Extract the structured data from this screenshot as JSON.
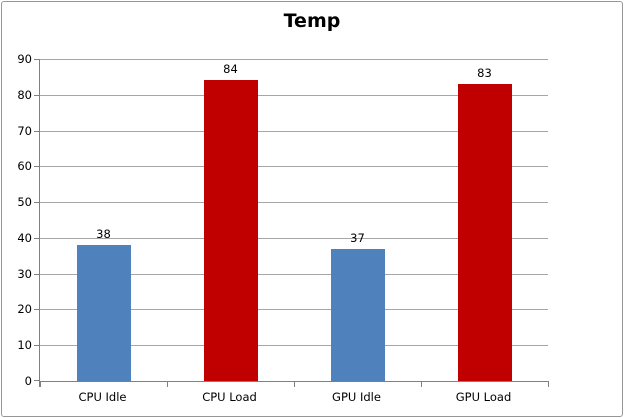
{
  "chart_data": {
    "type": "bar",
    "title": "Temp",
    "categories": [
      "CPU Idle",
      "CPU Load",
      "GPU Idle",
      "GPU Load"
    ],
    "values": [
      38,
      84,
      37,
      83
    ],
    "bar_colors": [
      "#4F81BD",
      "#C00000",
      "#4F81BD",
      "#C00000"
    ],
    "ylim": [
      0,
      90
    ],
    "ytick_step": 10,
    "xlabel": "",
    "ylabel": "",
    "grid": true,
    "legend": false,
    "value_labels_shown": true,
    "colors": {
      "gridline": "#A6A6A6",
      "axis": "#808080",
      "text": "#000000",
      "frame_border": "#969696",
      "background": "#FFFFFF"
    }
  }
}
